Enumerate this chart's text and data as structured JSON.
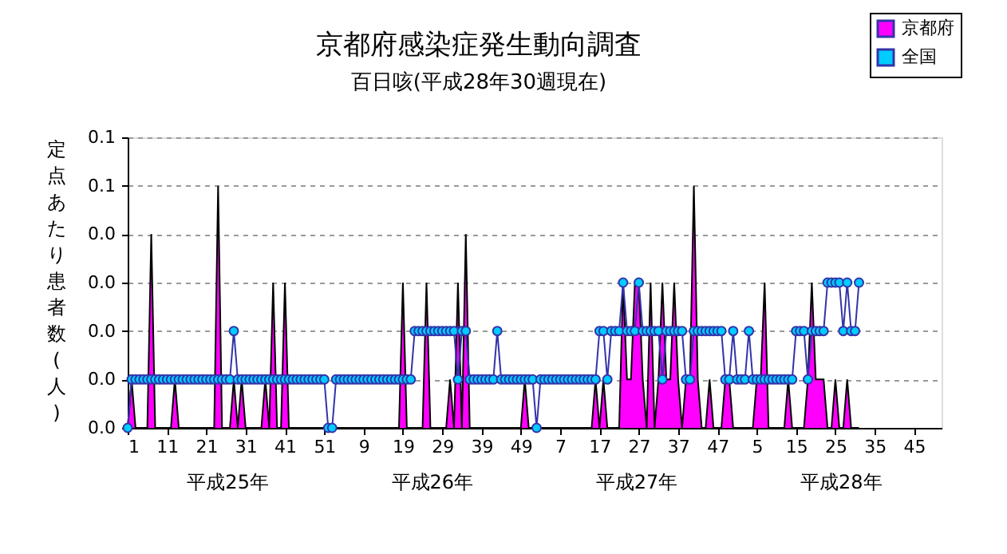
{
  "chart_data": {
    "type": "area",
    "title": "京都府感染症発生動向調査",
    "subtitle": "百日咳(平成28年30週現在)",
    "ylabel": "定点あたり患者数(人)",
    "categories": [
      "1",
      null,
      null,
      null,
      null,
      null,
      null,
      null,
      null,
      null,
      "11",
      null,
      null,
      null,
      null,
      null,
      null,
      null,
      null,
      null,
      "21",
      null,
      null,
      null,
      null,
      null,
      null,
      null,
      null,
      null,
      "31",
      null,
      null,
      null,
      null,
      null,
      null,
      null,
      null,
      null,
      "41",
      null,
      null,
      null,
      null,
      null,
      null,
      null,
      null,
      null,
      "51",
      null,
      null,
      null,
      null,
      null,
      null,
      null,
      null,
      null,
      "9",
      null,
      null,
      null,
      null,
      null,
      null,
      null,
      null,
      null,
      "19",
      null,
      null,
      null,
      null,
      null,
      null,
      null,
      null,
      null,
      "29",
      null,
      null,
      null,
      null,
      null,
      null,
      null,
      null,
      null,
      "39",
      null,
      null,
      null,
      null,
      null,
      null,
      null,
      null,
      null,
      "49",
      null,
      null,
      null,
      null,
      null,
      null,
      null,
      null,
      null,
      "7",
      null,
      null,
      null,
      null,
      null,
      null,
      null,
      null,
      null,
      "17",
      null,
      null,
      null,
      null,
      null,
      null,
      null,
      null,
      null,
      "27",
      null,
      null,
      null,
      null,
      null,
      null,
      null,
      null,
      null,
      "37",
      null,
      null,
      null,
      null,
      null,
      null,
      null,
      null,
      null,
      "47",
      null,
      null,
      null,
      null,
      null,
      null,
      null,
      null,
      null,
      "5",
      null,
      null,
      null,
      null,
      null,
      null,
      null,
      null,
      null,
      "15",
      null,
      null,
      null,
      null,
      null,
      null,
      null,
      null,
      null,
      "25",
      null,
      null,
      null,
      null,
      null,
      null,
      null,
      null,
      null,
      "35",
      null,
      null,
      null,
      null,
      null,
      null,
      null,
      null,
      null,
      "45",
      null,
      null,
      null,
      null,
      null,
      null,
      null
    ],
    "series": [
      {
        "name": "京都府",
        "color": "#ff00ff",
        "values": [
          0,
          0.01,
          0,
          0,
          0,
          0,
          0.04,
          0,
          0,
          0,
          0,
          0,
          0.01,
          0,
          0,
          0,
          0,
          0,
          0,
          0,
          0,
          0,
          0,
          0.05,
          0,
          0,
          0,
          0.01,
          0,
          0.01,
          0,
          0,
          0,
          0,
          0,
          0.01,
          0,
          0.03,
          0,
          0,
          0.03,
          0,
          0,
          0,
          0,
          0,
          0,
          0,
          0,
          0,
          0,
          0,
          0,
          0,
          0,
          0,
          0,
          0,
          0,
          0,
          0,
          0,
          0,
          0,
          0,
          0,
          0,
          0,
          0,
          0,
          0.03,
          0,
          0,
          0,
          0,
          0,
          0.03,
          0,
          0,
          0,
          0,
          0,
          0.01,
          0,
          0.03,
          0,
          0.04,
          0,
          0,
          0,
          0,
          0,
          0,
          0,
          0,
          0,
          0,
          0,
          0,
          0,
          0,
          0.01,
          0,
          0,
          0,
          0,
          0,
          0,
          0,
          0,
          0,
          0,
          0,
          0,
          0,
          0,
          0,
          0,
          0,
          0.01,
          0,
          0.01,
          0,
          0,
          0,
          0,
          0.03,
          0.01,
          0.01,
          0.03,
          0.03,
          0.01,
          0,
          0.03,
          0,
          0.01,
          0.03,
          0.01,
          0.01,
          0.03,
          0.01,
          0,
          0.01,
          0.01,
          0.05,
          0.01,
          0,
          0,
          0.01,
          0,
          0,
          0,
          0.01,
          0.01,
          0,
          0,
          0,
          0,
          0,
          0,
          0.01,
          0.01,
          0.03,
          0,
          0,
          0,
          0,
          0,
          0.01,
          0,
          0,
          0,
          0,
          0.01,
          0.03,
          0.01,
          0.01,
          0.01,
          0,
          0,
          0.01,
          0,
          0,
          0.01,
          0,
          0,
          0,
          null,
          null,
          null,
          null,
          null,
          null,
          null,
          null,
          null,
          null,
          null,
          null,
          null,
          null,
          null,
          null,
          null,
          null,
          null,
          null,
          null
        ]
      },
      {
        "name": "全国",
        "type": "line",
        "marker": "circle",
        "color": "#00ccff",
        "values": [
          0,
          0.01,
          0.01,
          0.01,
          0.01,
          0.01,
          0.01,
          0.01,
          0.01,
          0.01,
          0.01,
          0.01,
          0.01,
          0.01,
          0.01,
          0.01,
          0.01,
          0.01,
          0.01,
          0.01,
          0.01,
          0.01,
          0.01,
          0.01,
          0.01,
          0.01,
          0.01,
          0.02,
          0.01,
          0.01,
          0.01,
          0.01,
          0.01,
          0.01,
          0.01,
          0.01,
          0.01,
          0.01,
          0.01,
          0.01,
          0.01,
          0.01,
          0.01,
          0.01,
          0.01,
          0.01,
          0.01,
          0.01,
          0.01,
          0.01,
          0.01,
          0,
          0,
          0.01,
          0.01,
          0.01,
          0.01,
          0.01,
          0.01,
          0.01,
          0.01,
          0.01,
          0.01,
          0.01,
          0.01,
          0.01,
          0.01,
          0.01,
          0.01,
          0.01,
          0.01,
          0.01,
          0.01,
          0.02,
          0.02,
          0.02,
          0.02,
          0.02,
          0.02,
          0.02,
          0.02,
          0.02,
          0.02,
          0.02,
          0.01,
          0.02,
          0.02,
          0.01,
          0.01,
          0.01,
          0.01,
          0.01,
          0.01,
          0.01,
          0.02,
          0.01,
          0.01,
          0.01,
          0.01,
          0.01,
          0.01,
          0.01,
          0.01,
          0.01,
          0,
          0.01,
          0.01,
          0.01,
          0.01,
          0.01,
          0.01,
          0.01,
          0.01,
          0.01,
          0.01,
          0.01,
          0.01,
          0.01,
          0.01,
          0.01,
          0.02,
          0.02,
          0.01,
          0.02,
          0.02,
          0.02,
          0.03,
          0.02,
          0.02,
          0.02,
          0.03,
          0.02,
          0.02,
          0.02,
          0.02,
          0.02,
          0.01,
          0.02,
          0.02,
          0.02,
          0.02,
          0.02,
          0.01,
          0.01,
          0.02,
          0.02,
          0.02,
          0.02,
          0.02,
          0.02,
          0.02,
          0.02,
          0.01,
          0.01,
          0.02,
          0.01,
          0.01,
          0.01,
          0.02,
          0.01,
          0.01,
          0.01,
          0.01,
          0.01,
          0.01,
          0.01,
          0.01,
          0.01,
          0.01,
          0.01,
          0.02,
          0.02,
          0.02,
          0.01,
          0.02,
          0.02,
          0.02,
          0.02,
          0.03,
          0.03,
          0.03,
          0.03,
          0.02,
          0.03,
          0.02,
          0.02,
          0.03,
          null,
          null,
          null,
          null,
          null,
          null,
          null,
          null,
          null,
          null,
          null,
          null,
          null,
          null,
          null,
          null,
          null,
          null,
          null,
          null,
          null
        ]
      }
    ],
    "ylim": [
      0,
      0.06
    ],
    "yticks": [
      {
        "value": 0,
        "label": "0.0"
      },
      {
        "value": 0.01,
        "label": "0.0"
      },
      {
        "value": 0.02,
        "label": "0.0"
      },
      {
        "value": 0.03,
        "label": "0.0"
      },
      {
        "value": 0.04,
        "label": "0.0"
      },
      {
        "value": 0.05,
        "label": "0.1"
      },
      {
        "value": 0.06,
        "label": "0.1"
      }
    ],
    "grid": "y",
    "legend": "top right",
    "annotations": [
      "平成25年",
      "平成26年",
      "平成27年",
      "平成28年"
    ]
  }
}
